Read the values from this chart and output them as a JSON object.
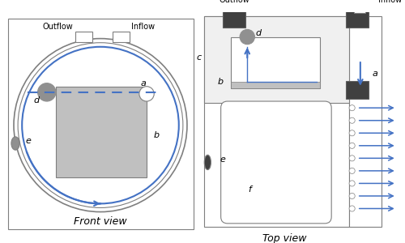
{
  "bg_color": "#ffffff",
  "border_color": "#7f7f7f",
  "blue_color": "#4472c4",
  "dark_gray": "#404040",
  "medium_gray": "#909090",
  "light_gray": "#c0c0c0",
  "front_title": "Front view",
  "top_title": "Top view",
  "label_outflow_front": "Outflow",
  "label_inflow_front": "Inflow",
  "label_outflow_top": "Outflow",
  "label_inflow_top": "Inflow"
}
